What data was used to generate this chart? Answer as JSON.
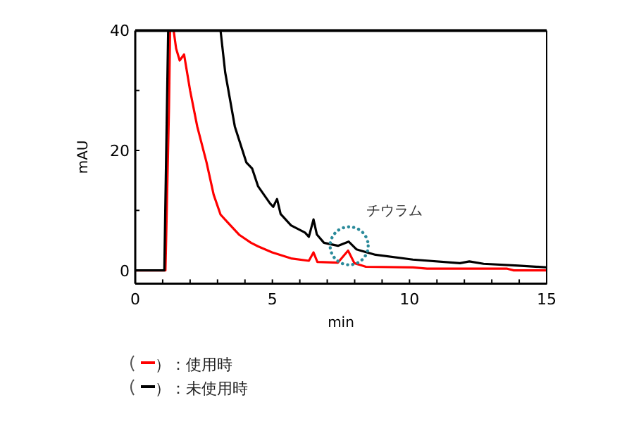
{
  "chart_data": {
    "type": "line",
    "xlabel": "min",
    "ylabel": "mAU",
    "xlim": [
      0,
      15
    ],
    "ylim": [
      -2.2,
      40
    ],
    "xticks": [
      0,
      {
        "value": 1,
        "label": null
      },
      {
        "value": 2,
        "label": null
      },
      {
        "value": 3,
        "label": null
      },
      {
        "value": 4,
        "label": null
      },
      5,
      {
        "value": 6,
        "label": null
      },
      {
        "value": 7,
        "label": null
      },
      {
        "value": 8,
        "label": null
      },
      {
        "value": 9,
        "label": null
      },
      10,
      {
        "value": 11,
        "label": null
      },
      {
        "value": 12,
        "label": null
      },
      {
        "value": 13,
        "label": null
      },
      {
        "value": 14,
        "label": null
      },
      15
    ],
    "yticks": [
      0,
      {
        "value": 10,
        "label": null
      },
      20,
      {
        "value": 30,
        "label": null
      },
      40
    ],
    "grid": false,
    "legend": "bottom",
    "marker": "none",
    "line_style": "solid",
    "annotations": [
      {
        "text": "チウラム",
        "x": 7.8,
        "y": 4.8
      }
    ],
    "series": [
      {
        "name": "）：使用時",
        "color": "#ff0000",
        "x": [
          0,
          1.1,
          1.13,
          1.23,
          1.27,
          1.4,
          1.49,
          1.62,
          1.78,
          2.0,
          2.26,
          2.6,
          2.86,
          3.11,
          3.37,
          3.8,
          4.22,
          4.48,
          4.99,
          5.68,
          6.33,
          6.5,
          6.64,
          7.39,
          7.76,
          7.99,
          8.41,
          10.12,
          10.64,
          13.54,
          13.8,
          15
        ],
        "values": [
          0,
          0,
          6,
          27,
          40,
          40,
          37,
          35,
          36,
          30,
          24,
          18,
          12.6,
          9.3,
          8,
          5.9,
          4.6,
          4,
          3,
          2,
          1.6,
          3,
          1.4,
          1.3,
          3.3,
          1.2,
          0.6,
          0.5,
          0.3,
          0.3,
          0,
          0
        ]
      },
      {
        "name": "）：未使用時",
        "color": "#000000",
        "x": [
          0,
          1.06,
          1.2,
          3.11,
          3.28,
          3.63,
          4.05,
          4.26,
          4.48,
          4.91,
          5.03,
          5.17,
          5.3,
          5.68,
          6.19,
          6.33,
          6.5,
          6.62,
          6.88,
          7.39,
          7.78,
          8.07,
          8.76,
          10.12,
          11.84,
          12.18,
          12.7,
          13.97,
          15
        ],
        "values": [
          0,
          0,
          40,
          40,
          33,
          24,
          18,
          17,
          14,
          11.2,
          10.6,
          11.9,
          9.4,
          7.5,
          6.3,
          5.6,
          8.5,
          6,
          4.6,
          4.1,
          4.8,
          3.5,
          2.6,
          1.8,
          1.2,
          1.5,
          1.1,
          0.8,
          0.5
        ]
      }
    ]
  }
}
